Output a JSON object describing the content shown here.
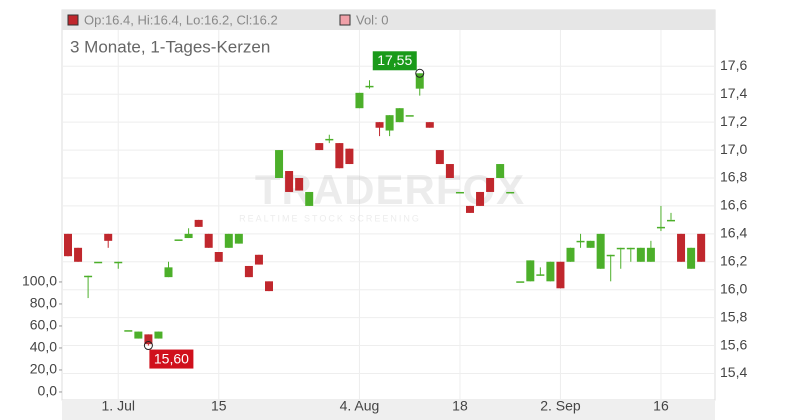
{
  "chart_data": {
    "type": "candlestick",
    "subtitle": "3 Monate, 1-Tages-Kerzen",
    "ohlc_label": "Op:16.4, Hi:16.4, Lo:16.2, Cl:16.2",
    "ohlc_color": "#c0272d",
    "volume_label": "Vol: 0",
    "volume_color": "#f0a0a8",
    "watermark": "TRADERFOX",
    "watermark_sub": "REALTIME STOCK SCREENING",
    "up_color": "#4caf2a",
    "down_color": "#c0272d",
    "categories": [
      null,
      null,
      null,
      null,
      null,
      "1. Jul",
      null,
      null,
      null,
      null,
      null,
      null,
      null,
      null,
      null,
      "15",
      null,
      null,
      null,
      null,
      null,
      null,
      null,
      null,
      null,
      null,
      null,
      null,
      null,
      "4. Aug",
      null,
      null,
      null,
      null,
      null,
      null,
      null,
      null,
      null,
      "18",
      null,
      null,
      null,
      null,
      null,
      null,
      null,
      null,
      null,
      "2. Sep",
      null,
      null,
      null,
      null,
      null,
      null,
      null,
      null,
      null,
      "16",
      null,
      null,
      null,
      null
    ],
    "open": [
      16.4,
      16.3,
      16.1,
      16.2,
      16.4,
      16.2,
      15.71,
      15.65,
      15.68,
      15.65,
      16.09,
      16.36,
      16.37,
      16.5,
      16.4,
      16.27,
      16.3,
      16.33,
      16.17,
      16.25,
      16.06,
      16.8,
      16.85,
      16.8,
      16.6,
      17.05,
      17.08,
      17.05,
      17.01,
      17.3,
      17.46,
      17.2,
      17.14,
      17.2,
      17.25,
      17.44,
      17.2,
      17.0,
      16.9,
      16.7,
      16.6,
      16.7,
      16.8,
      16.8,
      16.7,
      16.06,
      16.06,
      16.11,
      16.06,
      16.2,
      16.2,
      16.35,
      16.3,
      16.15,
      16.25,
      16.3,
      16.3,
      16.2,
      16.2,
      16.45,
      16.5,
      16.4,
      16.15,
      16.4
    ],
    "high": [
      16.4,
      16.3,
      16.1,
      16.2,
      16.4,
      16.2,
      15.71,
      15.7,
      15.68,
      15.7,
      16.2,
      16.36,
      16.44,
      16.5,
      16.4,
      16.27,
      16.4,
      16.4,
      16.17,
      16.25,
      16.06,
      17.0,
      16.85,
      16.8,
      16.7,
      17.05,
      17.11,
      17.05,
      17.01,
      17.41,
      17.5,
      17.2,
      17.25,
      17.3,
      17.25,
      17.55,
      17.2,
      17.0,
      16.9,
      16.7,
      16.6,
      16.7,
      16.8,
      16.9,
      16.7,
      16.06,
      16.21,
      16.16,
      16.2,
      16.2,
      16.3,
      16.4,
      16.35,
      16.4,
      16.25,
      16.3,
      16.3,
      16.3,
      16.35,
      16.6,
      16.55,
      16.4,
      16.3,
      16.4
    ],
    "low": [
      16.24,
      16.2,
      15.94,
      16.2,
      16.3,
      16.15,
      15.71,
      15.65,
      15.6,
      15.65,
      16.09,
      16.36,
      16.37,
      16.45,
      16.3,
      16.2,
      16.3,
      16.33,
      16.09,
      16.18,
      15.99,
      16.8,
      16.7,
      16.71,
      16.6,
      17.0,
      17.05,
      16.87,
      16.9,
      17.3,
      17.44,
      17.1,
      17.1,
      17.2,
      17.25,
      17.39,
      17.16,
      16.9,
      16.8,
      16.7,
      16.55,
      16.6,
      16.7,
      16.8,
      16.7,
      16.06,
      16.06,
      16.1,
      16.06,
      16.01,
      16.2,
      16.3,
      16.3,
      16.15,
      16.06,
      16.15,
      16.2,
      16.2,
      16.2,
      16.42,
      16.5,
      16.2,
      16.15,
      16.2
    ],
    "close": [
      16.24,
      16.2,
      16.1,
      16.2,
      16.35,
      16.2,
      15.71,
      15.7,
      15.61,
      15.7,
      16.16,
      16.36,
      16.4,
      16.45,
      16.3,
      16.2,
      16.4,
      16.4,
      16.09,
      16.18,
      15.99,
      17.0,
      16.7,
      16.71,
      16.7,
      17.0,
      17.08,
      16.87,
      16.9,
      17.41,
      17.46,
      17.16,
      17.25,
      17.3,
      17.25,
      17.55,
      17.16,
      16.9,
      16.8,
      16.7,
      16.55,
      16.6,
      16.7,
      16.9,
      16.7,
      16.06,
      16.21,
      16.11,
      16.2,
      16.01,
      16.3,
      16.35,
      16.35,
      16.4,
      16.25,
      16.3,
      16.3,
      16.3,
      16.3,
      16.45,
      16.5,
      16.2,
      16.3,
      16.2
    ],
    "annotations": [
      {
        "value": 17.55,
        "label": "17,55",
        "color": "#1a9a1a"
      },
      {
        "value": 15.6,
        "label": "15,60",
        "color": "#d0101c"
      }
    ],
    "ylim": [
      15.21,
      17.86
    ],
    "yticks": [
      {
        "value": 15.4,
        "label": "15,4"
      },
      {
        "value": 15.6,
        "label": "15,6"
      },
      {
        "value": 15.8,
        "label": "15,8"
      },
      {
        "value": 16.0,
        "label": "16,0"
      },
      {
        "value": 16.2,
        "label": "16,2"
      },
      {
        "value": 16.4,
        "label": "16,4"
      },
      {
        "value": 16.6,
        "label": "16,6"
      },
      {
        "value": 16.8,
        "label": "16,8"
      },
      {
        "value": 17.0,
        "label": "17,0"
      },
      {
        "value": 17.2,
        "label": "17,2"
      },
      {
        "value": 17.4,
        "label": "17,4"
      },
      {
        "value": 17.6,
        "label": "17,6"
      }
    ],
    "y2lim": [
      -7.3,
      329
    ],
    "y2ticks": [
      {
        "value": 0,
        "label": "0,0"
      },
      {
        "value": 20,
        "label": "20,0"
      },
      {
        "value": 40,
        "label": "40,0"
      },
      {
        "value": 60,
        "label": "60,0"
      },
      {
        "value": 80,
        "label": "80,0"
      },
      {
        "value": 100,
        "label": "100,0"
      }
    ],
    "grid": true
  }
}
